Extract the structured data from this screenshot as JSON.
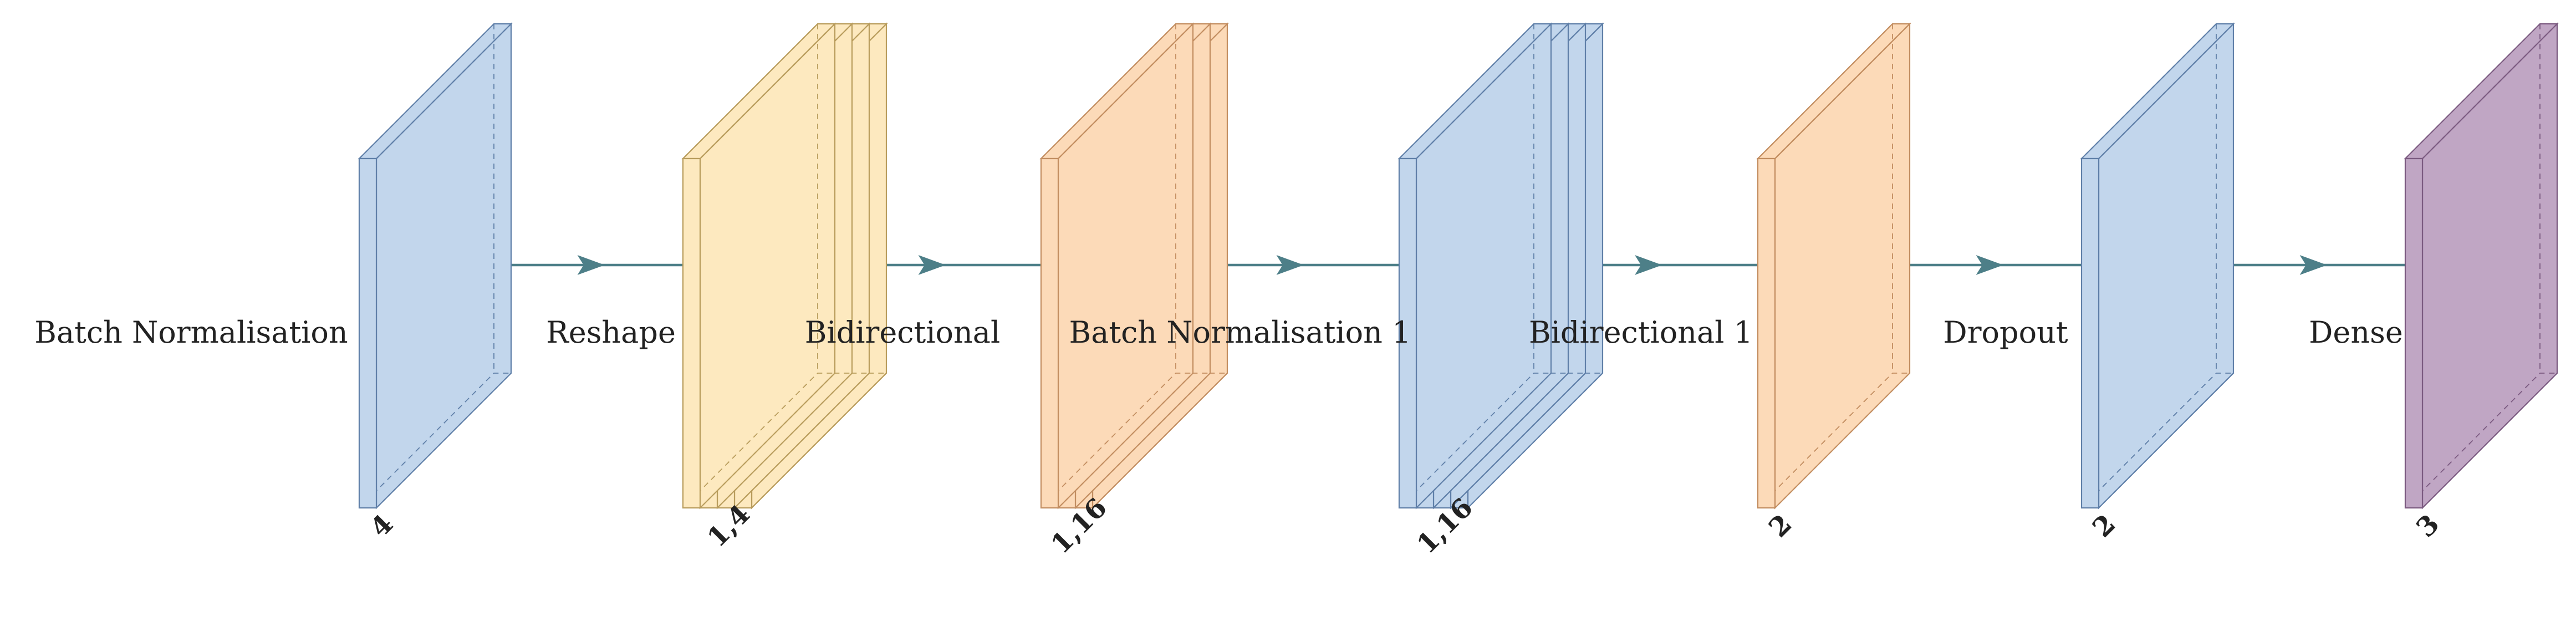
{
  "diagram": {
    "colors": {
      "blue": {
        "face": "#c2d6ec",
        "stroke": "#5f7fa8"
      },
      "yellow": {
        "face": "#fde9bf",
        "stroke": "#b89c5c"
      },
      "orange": {
        "face": "#fcdab8",
        "stroke": "#c28d60"
      },
      "purple": {
        "face": "#c0a6c4",
        "stroke": "#7b5a80"
      },
      "connector": "#4d7f88"
    },
    "layers": [
      {
        "id": "batch-normalisation",
        "label": "Batch Normalisation",
        "dim": "4",
        "color": "blue",
        "slices": 1
      },
      {
        "id": "reshape",
        "label": "Reshape",
        "dim": "1,4",
        "color": "yellow",
        "slices": 4
      },
      {
        "id": "bidirectional",
        "label": "Bidirectional",
        "dim": "1,16",
        "color": "orange",
        "slices": 3
      },
      {
        "id": "batch-normalisation-1",
        "label": "Batch Normalisation 1",
        "dim": "1,16",
        "color": "blue",
        "slices": 4
      },
      {
        "id": "bidirectional-1",
        "label": "Bidirectional 1",
        "dim": "2",
        "color": "orange",
        "slices": 1
      },
      {
        "id": "dropout",
        "label": "Dropout",
        "dim": "2",
        "color": "blue",
        "slices": 1
      },
      {
        "id": "dense",
        "label": "Dense",
        "dim": "3",
        "color": "purple",
        "slices": 1
      }
    ]
  }
}
